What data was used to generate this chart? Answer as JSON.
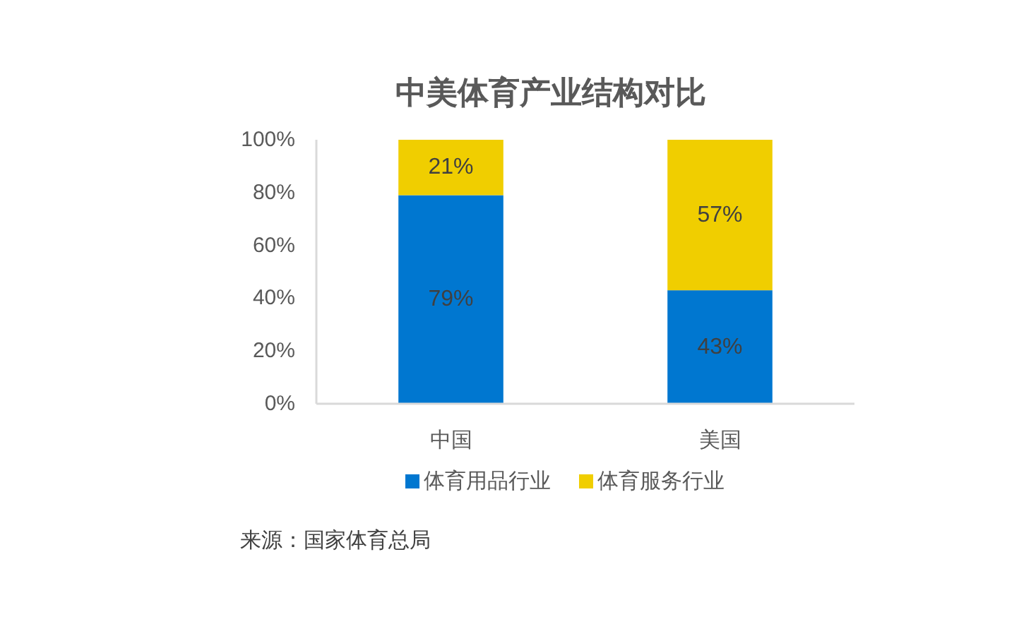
{
  "chart_data": {
    "type": "bar",
    "title": "中美体育产业结构对比",
    "categories": [
      "中国",
      "美国"
    ],
    "stacked": true,
    "series": [
      {
        "name": "体育用品行业",
        "color": "#0077d0",
        "values": [
          79,
          43
        ],
        "value_labels": [
          "79%",
          "43%"
        ]
      },
      {
        "name": "体育服务行业",
        "color": "#f0ce00",
        "values": [
          21,
          57
        ],
        "value_labels": [
          "21%",
          "57%"
        ]
      }
    ],
    "ylim": [
      0,
      100
    ],
    "yticks": [
      {
        "value": 0,
        "label": "0%"
      },
      {
        "value": 20,
        "label": "20%"
      },
      {
        "value": 40,
        "label": "40%"
      },
      {
        "value": 60,
        "label": "60%"
      },
      {
        "value": 80,
        "label": "80%"
      },
      {
        "value": 100,
        "label": "100%"
      }
    ],
    "legend": "bottom",
    "annotations": [
      "来源：国家体育总局"
    ]
  }
}
